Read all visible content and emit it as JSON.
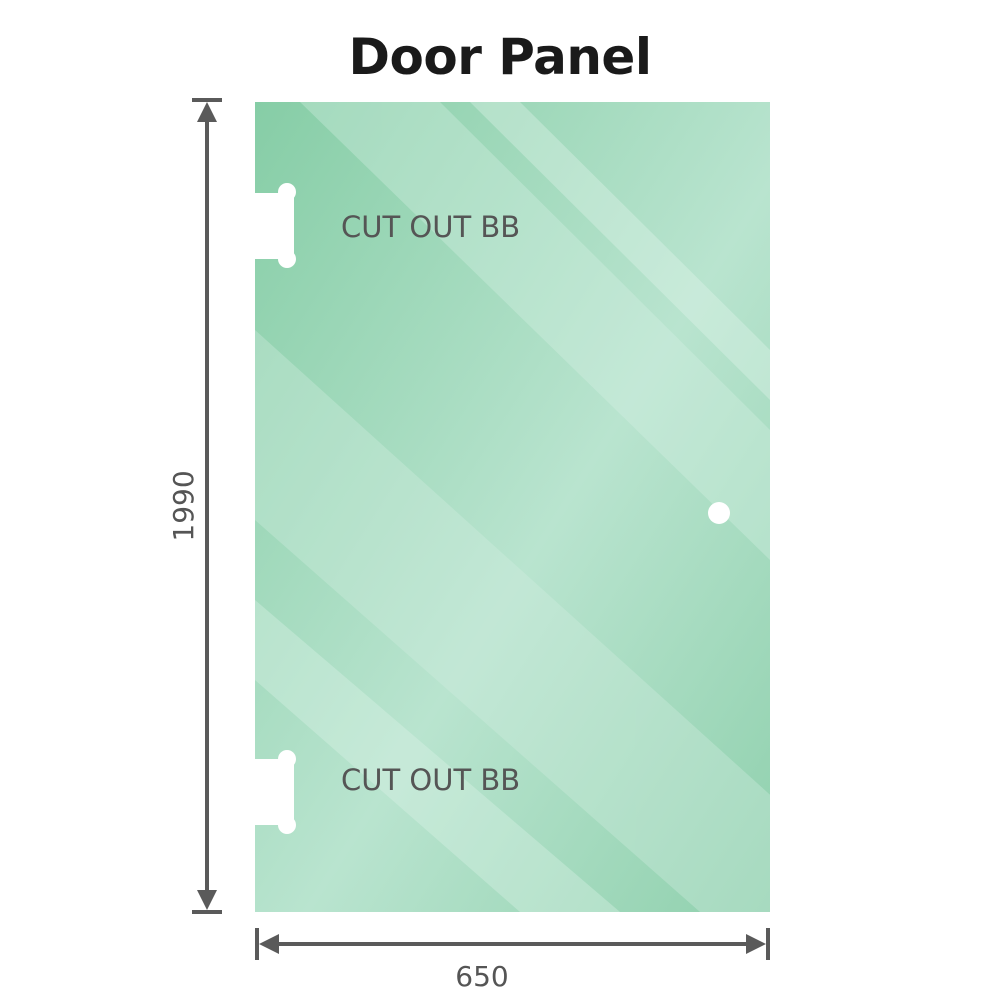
{
  "title": "Door Panel",
  "dimensions": {
    "height": "1990",
    "width": "650"
  },
  "cutouts": [
    {
      "label": "CUT OUT BB"
    },
    {
      "label": "CUT OUT BB"
    }
  ],
  "colors": {
    "glass": "#8fd0ad",
    "glass_light": "#bde6d2",
    "dimension_line": "#5a5a5a",
    "text": "#555555"
  }
}
